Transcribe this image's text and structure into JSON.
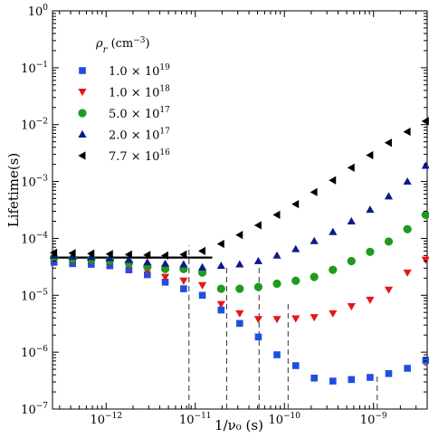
{
  "chart_data": {
    "type": "scatter",
    "title": "",
    "xlabel": "1/ν₀ (s)",
    "ylabel": "Lifetime(s)",
    "xscale": "log",
    "yscale": "log",
    "xlim": [
      2.5e-13,
      4e-09
    ],
    "ylim": [
      1e-07,
      1
    ],
    "x_ticks": [
      {
        "mant": "10",
        "exp": "−12",
        "value": 1e-12
      },
      {
        "mant": "10",
        "exp": "−11",
        "value": 1e-11
      },
      {
        "mant": "10",
        "exp": "−10",
        "value": 1e-10
      },
      {
        "mant": "10",
        "exp": "−9",
        "value": 1e-09
      }
    ],
    "y_ticks": [
      {
        "mant": "10",
        "exp": "0",
        "value": 1
      },
      {
        "mant": "10",
        "exp": "−1",
        "value": 0.1
      },
      {
        "mant": "10",
        "exp": "−2",
        "value": 0.01
      },
      {
        "mant": "10",
        "exp": "−3",
        "value": 0.001
      },
      {
        "mant": "10",
        "exp": "−4",
        "value": 0.0001
      },
      {
        "mant": "10",
        "exp": "−5",
        "value": 1e-05
      },
      {
        "mant": "10",
        "exp": "−6",
        "value": 1e-06
      },
      {
        "mant": "10",
        "exp": "−7",
        "value": 1e-07
      }
    ],
    "grid": false,
    "legend": {
      "placement": "top-left",
      "title": "ρr (cm⁻³)",
      "title_main": "ρ",
      "title_sub": "r",
      "title_rest": " (cm",
      "title_sup": "−3",
      "title_close": ")"
    },
    "series": [
      {
        "label_mant": "1.0 × 10",
        "label_exp": "19",
        "marker": "square",
        "color": "#1f4fe0",
        "x": [
          2.6e-13,
          4.2e-13,
          6.8e-13,
          1.1e-12,
          1.8e-12,
          2.9e-12,
          4.6e-12,
          7.4e-12,
          1.2e-11,
          1.95e-11,
          3.15e-11,
          5.1e-11,
          8.25e-11,
          1.34e-10,
          2.16e-10,
          3.5e-10,
          5.65e-10,
          9.15e-10,
          1.48e-09,
          2.4e-09,
          3.85e-09
        ],
        "y": [
          3.8e-05,
          3.6e-05,
          3.5e-05,
          3.3e-05,
          2.8e-05,
          2.3e-05,
          1.7e-05,
          1.3e-05,
          1e-05,
          5.5e-06,
          3.2e-06,
          1.85e-06,
          9e-07,
          5.8e-07,
          3.5e-07,
          3.1e-07,
          3.3e-07,
          3.6e-07,
          4.2e-07,
          5.2e-07,
          7.2e-07
        ]
      },
      {
        "label_mant": "1.0 × 10",
        "label_exp": "18",
        "marker": "triangle-down",
        "color": "#e8151b",
        "x": [
          2.6e-13,
          4.2e-13,
          6.8e-13,
          1.1e-12,
          1.8e-12,
          2.9e-12,
          4.6e-12,
          7.4e-12,
          1.2e-11,
          1.95e-11,
          3.15e-11,
          5.1e-11,
          8.25e-11,
          1.34e-10,
          2.16e-10,
          3.5e-10,
          5.65e-10,
          9.15e-10,
          1.48e-09,
          2.4e-09,
          3.85e-09
        ],
        "y": [
          4.2e-05,
          4e-05,
          3.9e-05,
          3.7e-05,
          3.3e-05,
          2.7e-05,
          2.1e-05,
          1.8e-05,
          1.5e-05,
          7e-06,
          4.8e-06,
          3.8e-06,
          3.8e-06,
          3.9e-06,
          4.1e-06,
          4.8e-06,
          6.4e-06,
          8.3e-06,
          1.25e-05,
          2.5e-05,
          4.2e-05
        ]
      },
      {
        "label_mant": "5.0 × 10",
        "label_exp": "17",
        "marker": "circle",
        "color": "#1f9a1f",
        "x": [
          2.6e-13,
          4.2e-13,
          6.8e-13,
          1.1e-12,
          1.8e-12,
          2.9e-12,
          4.6e-12,
          7.4e-12,
          1.2e-11,
          1.95e-11,
          3.15e-11,
          5.1e-11,
          8.25e-11,
          1.34e-10,
          2.16e-10,
          3.5e-10,
          5.65e-10,
          9.15e-10,
          1.48e-09,
          2.4e-09,
          3.85e-09
        ],
        "y": [
          4.6e-05,
          4.4e-05,
          4.3e-05,
          4.1e-05,
          3.7e-05,
          3.2e-05,
          2.9e-05,
          2.9e-05,
          2.5e-05,
          1.3e-05,
          1.3e-05,
          1.4e-05,
          1.6e-05,
          1.8e-05,
          2.1e-05,
          2.8e-05,
          4e-05,
          5.8e-05,
          8.8e-05,
          0.000145,
          0.00026
        ]
      },
      {
        "label_mant": "2.0 × 10",
        "label_exp": "17",
        "marker": "triangle-up",
        "color": "#0d1a8a",
        "x": [
          2.6e-13,
          4.2e-13,
          6.8e-13,
          1.1e-12,
          1.8e-12,
          2.9e-12,
          4.6e-12,
          7.4e-12,
          1.2e-11,
          1.95e-11,
          3.15e-11,
          5.1e-11,
          8.25e-11,
          1.34e-10,
          2.16e-10,
          3.5e-10,
          5.65e-10,
          9.15e-10,
          1.48e-09,
          2.4e-09,
          3.85e-09
        ],
        "y": [
          5e-05,
          4.8e-05,
          4.7e-05,
          4.5e-05,
          4.2e-05,
          3.8e-05,
          3.6e-05,
          3.5e-05,
          3.1e-05,
          3.3e-05,
          3.5e-05,
          4e-05,
          5e-05,
          6.5e-05,
          9e-05,
          0.00013,
          0.0002,
          0.00032,
          0.00055,
          0.001,
          0.0019
        ]
      },
      {
        "label_mant": "7.7 × 10",
        "label_exp": "16",
        "marker": "triangle-left",
        "color": "#000000",
        "x": [
          2.6e-13,
          4.2e-13,
          6.8e-13,
          1.1e-12,
          1.8e-12,
          2.9e-12,
          4.6e-12,
          7.4e-12,
          1.2e-11,
          1.95e-11,
          3.15e-11,
          5.1e-11,
          8.25e-11,
          1.34e-10,
          2.16e-10,
          3.5e-10,
          5.65e-10,
          9.15e-10,
          1.48e-09,
          2.4e-09,
          3.85e-09
        ],
        "y": [
          5.6e-05,
          5.5e-05,
          5.4e-05,
          5.3e-05,
          5.2e-05,
          5.1e-05,
          5e-05,
          5.2e-05,
          6e-05,
          8e-05,
          0.000115,
          0.00017,
          0.00026,
          0.0004,
          0.00065,
          0.00105,
          0.00175,
          0.0029,
          0.0048,
          0.0075,
          0.0115
        ]
      }
    ],
    "reference_line": {
      "color": "#000000",
      "x": [
        2.5e-13,
        1.55e-11
      ],
      "y": [
        4.6e-05,
        4.6e-05
      ]
    },
    "vertical_markers": [
      {
        "x": 8.5e-12,
        "y_top": 7.5e-05
      },
      {
        "x": 2.25e-11,
        "y_top": 3.2e-05
      },
      {
        "x": 5.2e-11,
        "y_top": 3.2e-05
      },
      {
        "x": 1.1e-10,
        "y_top": 7e-06
      },
      {
        "x": 1.1e-09,
        "y_top": 4e-07
      }
    ]
  }
}
